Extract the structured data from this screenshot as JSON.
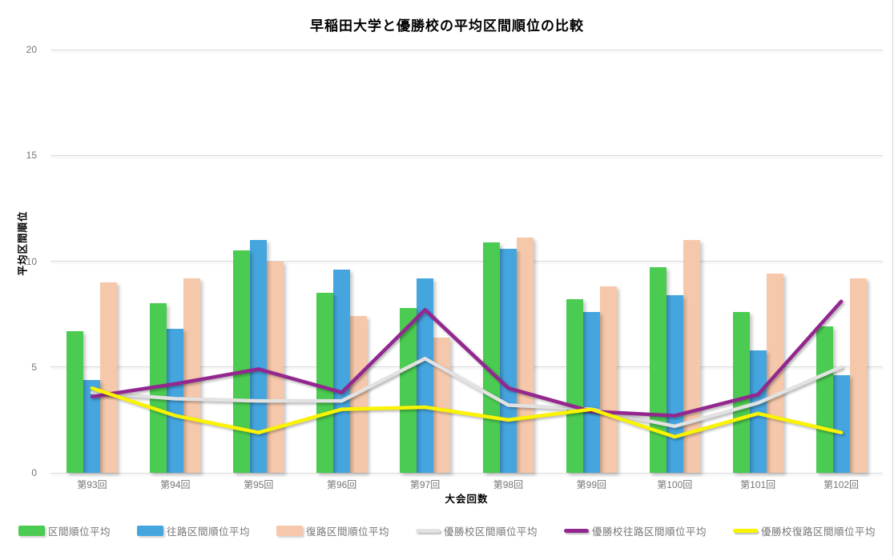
{
  "window": {
    "background": "#ffffff"
  },
  "chart_data": {
    "type": "bar+line",
    "title": "早稲田大学と優勝校の平均区間順位の比較",
    "xlabel": "大会回数",
    "ylabel": "平均区間順位",
    "ylim": [
      0,
      20
    ],
    "yticks": [
      0,
      5,
      10,
      15,
      20
    ],
    "grid": "horizontal-only",
    "gridline_color": "#d9d9d9",
    "tick_label_color": "#757575",
    "legend_position": "bottom",
    "categories": [
      "第93回",
      "第94回",
      "第95回",
      "第96回",
      "第97回",
      "第98回",
      "第99回",
      "第100回",
      "第101回",
      "第102回"
    ],
    "bar_series": [
      {
        "name": "区間順位平均",
        "color": "#4bcb51",
        "values": [
          6.7,
          8.0,
          10.5,
          8.5,
          7.8,
          10.9,
          8.2,
          9.7,
          7.6,
          6.9
        ]
      },
      {
        "name": "往路区間順位平均",
        "color": "#45a5df",
        "values": [
          4.4,
          6.8,
          11.0,
          9.6,
          9.2,
          10.6,
          7.6,
          8.4,
          5.8,
          4.6
        ]
      },
      {
        "name": "復路区間順位平均",
        "color": "#f6c8ab",
        "values": [
          9.0,
          9.2,
          10.0,
          7.4,
          6.4,
          11.1,
          8.8,
          11.0,
          9.4,
          9.2
        ]
      }
    ],
    "line_series": [
      {
        "name": "優勝校区間順位平均",
        "color": "#e2e2e2",
        "values": [
          3.8,
          3.5,
          3.4,
          3.4,
          5.4,
          3.2,
          3.0,
          2.2,
          3.3,
          5.0
        ]
      },
      {
        "name": "優勝校往路区間順位平均",
        "color": "#93278f",
        "values": [
          3.6,
          4.2,
          4.9,
          3.8,
          7.7,
          4.0,
          2.9,
          2.7,
          3.7,
          8.1
        ]
      },
      {
        "name": "優勝校復路区間順位平均",
        "color": "#fbf400",
        "values": [
          4.0,
          2.7,
          1.9,
          3.0,
          3.1,
          2.5,
          3.0,
          1.7,
          2.8,
          1.9
        ]
      }
    ]
  }
}
